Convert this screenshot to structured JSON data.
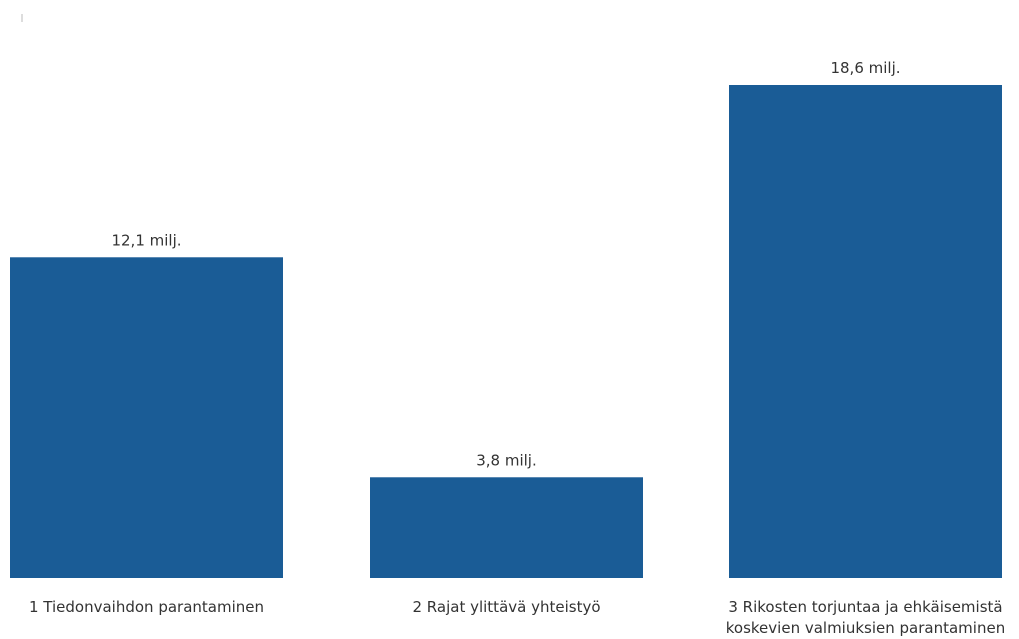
{
  "chart_data": {
    "type": "bar",
    "categories": [
      "1 Tiedonvaihdon parantaminen",
      "2 Rajat ylittävä yhteistyö",
      "3 Rikosten torjuntaa ja ehkäisemistä koskevien valmiuksien parantaminen"
    ],
    "category_lines": [
      [
        "1 Tiedonvaihdon parantaminen"
      ],
      [
        "2 Rajat ylittävä yhteistyö"
      ],
      [
        "3 Rikosten torjuntaa ja ehkäisemistä",
        "koskevien valmiuksien parantaminen"
      ]
    ],
    "values": [
      12.1,
      3.8,
      18.6
    ],
    "data_labels": [
      "12,1 milj.",
      "3,8 milj.",
      "18,6 milj."
    ],
    "ylim": [
      0,
      18.6
    ],
    "grid": false,
    "legend": "none",
    "bar_color": "#1a5c96"
  }
}
